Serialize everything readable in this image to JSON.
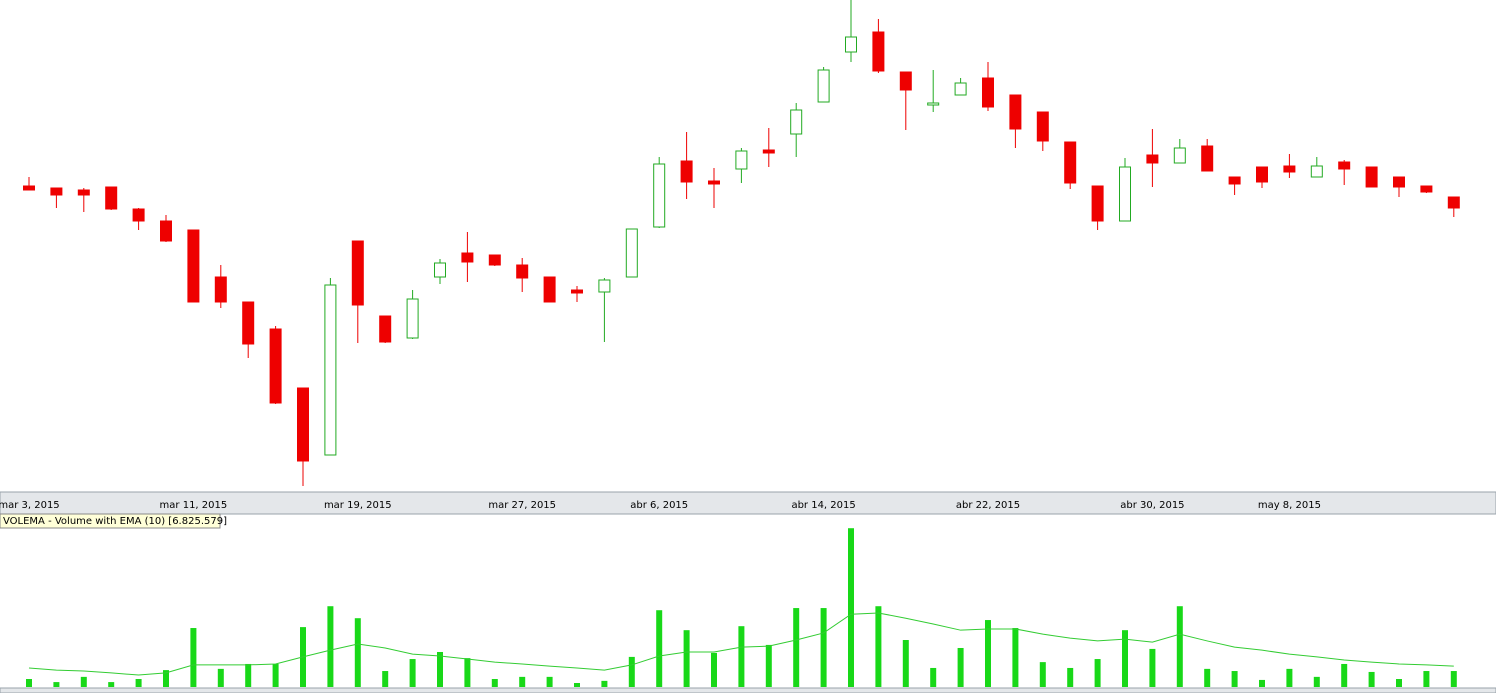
{
  "chart_data": [
    {
      "type": "candlestick",
      "categories": [
        "mar 3, 2015",
        null,
        null,
        null,
        null,
        null,
        "mar 11, 2015",
        null,
        null,
        null,
        null,
        null,
        "mar 19, 2015",
        null,
        null,
        null,
        null,
        null,
        "mar 27, 2015",
        null,
        null,
        null,
        null,
        "abr 6, 2015",
        null,
        null,
        null,
        null,
        null,
        "abr 14, 2015",
        null,
        null,
        null,
        null,
        null,
        "abr 22, 2015",
        null,
        null,
        null,
        null,
        null,
        "abr 30, 2015",
        null,
        null,
        null,
        null,
        "may 8, 2015",
        null,
        null,
        null,
        null,
        null,
        null
      ],
      "open": [
        306,
        304,
        302,
        305,
        283,
        271,
        262,
        215,
        190,
        163,
        104,
        37,
        251,
        176,
        154,
        215,
        239,
        237,
        227,
        215,
        202,
        200,
        215,
        265,
        331,
        311,
        323,
        342,
        358,
        390,
        440,
        460,
        420,
        387,
        397,
        414,
        397,
        380,
        350,
        306,
        271,
        337,
        329,
        346,
        315,
        325,
        326,
        315,
        330,
        325,
        315,
        306,
        295
      ],
      "high": [
        315,
        304,
        304,
        305,
        284,
        277,
        262,
        227,
        190,
        166,
        104,
        214,
        251,
        176,
        202,
        233,
        260,
        237,
        234,
        215,
        206,
        214,
        263,
        335,
        360,
        324,
        344,
        364,
        389,
        425,
        492,
        473,
        420,
        422,
        414,
        430,
        397,
        380,
        350,
        306,
        334,
        363,
        353,
        353,
        315,
        325,
        338,
        335,
        332,
        325,
        315,
        306,
        295
      ],
      "low": [
        302,
        284,
        280,
        282,
        262,
        250,
        190,
        184,
        134,
        88,
        6,
        37,
        149,
        149,
        153,
        208,
        210,
        226,
        200,
        190,
        190,
        150,
        215,
        264,
        293,
        284,
        309,
        325,
        335,
        390,
        430,
        419,
        362,
        380,
        397,
        381,
        344,
        341,
        303,
        262,
        271,
        305,
        329,
        321,
        297,
        304,
        314,
        315,
        307,
        305,
        295,
        299,
        275
      ],
      "close": [
        302,
        297,
        297,
        283,
        271,
        251,
        190,
        190,
        148,
        89,
        31,
        207,
        187,
        150,
        193,
        229,
        230,
        227,
        214,
        190,
        199,
        212,
        263,
        328,
        310,
        308,
        341,
        339,
        382,
        422,
        455,
        421,
        402,
        389,
        409,
        385,
        363,
        351,
        309,
        271,
        325,
        329,
        344,
        321,
        308,
        310,
        320,
        326,
        323,
        305,
        305,
        300,
        284
      ],
      "ylim": [
        0,
        492
      ],
      "up_color": "#22aa22",
      "down_color": "#ee0000"
    },
    {
      "type": "bar",
      "title": "VOLEMA - Volume with EMA (10) [6.825.579]",
      "values": [
        2.6,
        1.6,
        3.3,
        1.6,
        2.6,
        5.5,
        19.2,
        5.9,
        7.5,
        7.5,
        19.5,
        26.3,
        22.4,
        5.2,
        9.1,
        11.4,
        9.4,
        2.6,
        3.3,
        3.3,
        1.3,
        2.0,
        9.8,
        25.0,
        18.5,
        11.1,
        19.8,
        13.7,
        25.7,
        25.7,
        51.7,
        26.3,
        15.3,
        6.2,
        12.7,
        21.8,
        19.2,
        8.1,
        6.2,
        9.1,
        18.5,
        12.4,
        26.3,
        5.9,
        5.2,
        2.3,
        5.9,
        3.3,
        7.5,
        4.9,
        2.6,
        5.2,
        5.2
      ],
      "ema": [
        6.2,
        5.5,
        5.2,
        4.6,
        3.9,
        4.6,
        7.2,
        7.2,
        7.2,
        7.5,
        9.8,
        12.0,
        14.0,
        12.7,
        10.7,
        10.1,
        9.1,
        8.1,
        7.5,
        6.8,
        6.2,
        5.5,
        7.2,
        10.1,
        11.4,
        11.4,
        13.0,
        13.3,
        15.3,
        17.6,
        23.7,
        24.1,
        22.4,
        20.5,
        18.5,
        18.9,
        18.9,
        17.2,
        15.9,
        15.0,
        15.6,
        14.6,
        17.2,
        15.0,
        13.0,
        12.0,
        10.7,
        9.8,
        8.8,
        8.1,
        7.5,
        7.2,
        6.8
      ],
      "color": "#18d818",
      "ema_color": "#33cc33",
      "ylim": [
        0,
        56
      ]
    }
  ]
}
